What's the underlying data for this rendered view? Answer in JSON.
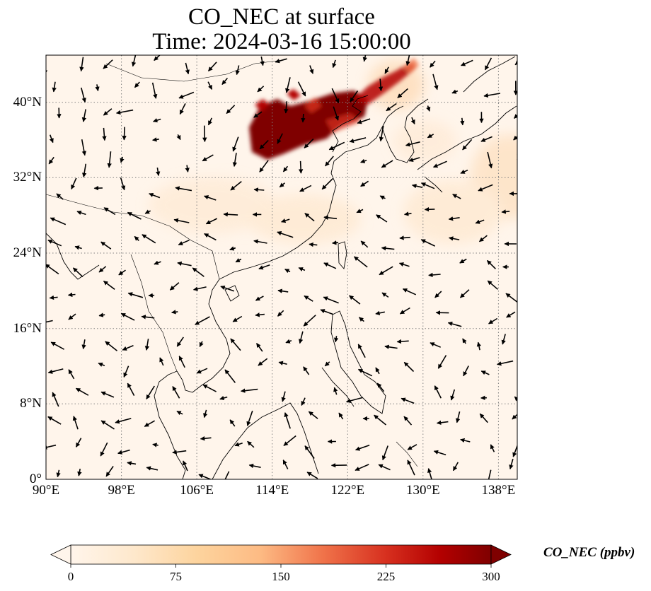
{
  "figure": {
    "title_line1": "CO_NEC at surface",
    "title_line2": "Time: 2024-03-16 15:00:00"
  },
  "map": {
    "extent": {
      "lon": [
        90,
        140
      ],
      "lat": [
        0,
        45
      ]
    },
    "lat_ticks": [
      "0°",
      "8°N",
      "16°N",
      "24°N",
      "32°N",
      "40°N"
    ],
    "lon_ticks": [
      "90°E",
      "98°E",
      "106°E",
      "114°E",
      "122°E",
      "130°E",
      "138°E"
    ],
    "gridlines": true,
    "background_color": "#fff5eb",
    "coastline_color": "#000000",
    "wind_vectors": true
  },
  "colorbar": {
    "label": "CO_NEC (ppbv)",
    "ticks": [
      "0",
      "75",
      "150",
      "225",
      "300"
    ],
    "min": 0,
    "max": 300,
    "extend": "both",
    "colormap": "OrRd",
    "colors": [
      "#fff5eb",
      "#fee6ce",
      "#fdd0a2",
      "#fdae6b",
      "#f16913",
      "#d94801",
      "#a50f15",
      "#7f0000"
    ]
  }
}
